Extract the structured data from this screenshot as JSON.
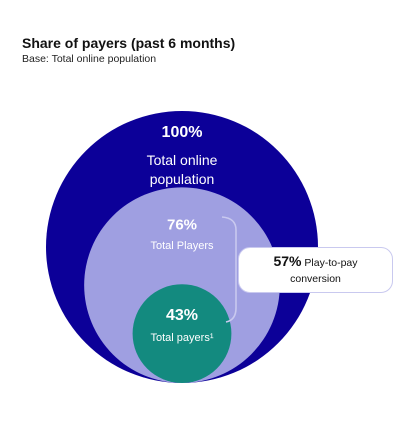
{
  "chart_data": {
    "type": "nested-circle",
    "title": "Share of payers (past 6 months)",
    "subtitle": "Base: Total online population",
    "categories": [
      "Total online population",
      "Total Players",
      "Total payers¹"
    ],
    "values": [
      100,
      76,
      43
    ],
    "value_labels": [
      "100%",
      "76%",
      "43%"
    ],
    "colors": [
      "#0c0098",
      "#9f9fe1",
      "#138a7f"
    ],
    "annotation": {
      "label": "57%",
      "text": "Play-to-pay conversion"
    }
  }
}
